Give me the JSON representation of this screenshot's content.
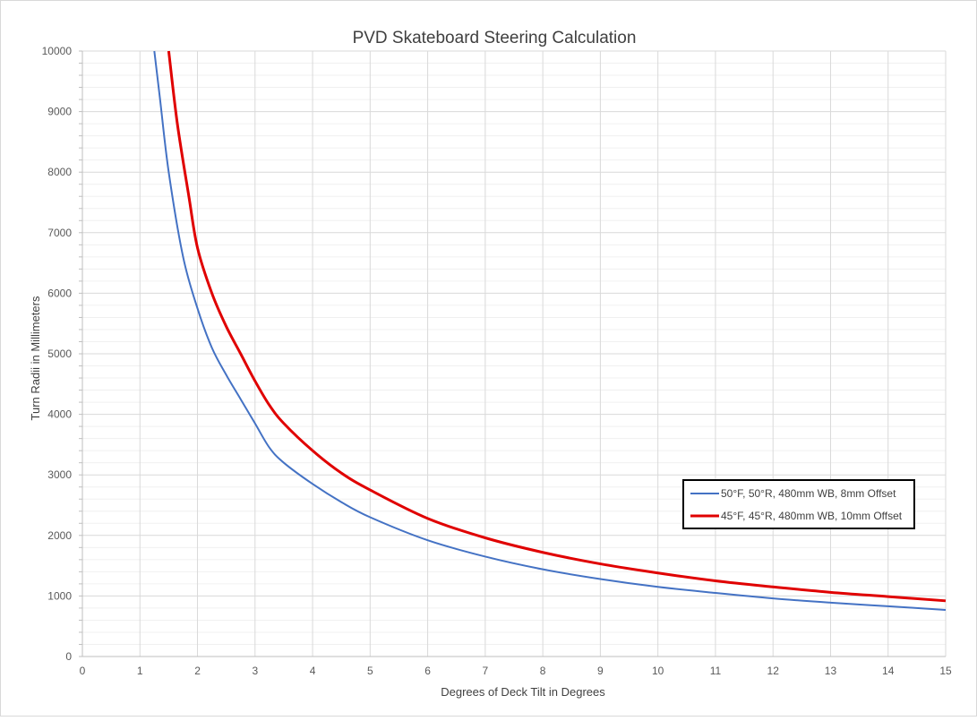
{
  "chart_data": {
    "type": "line",
    "title": "PVD Skateboard Steering Calculation",
    "xlabel": "Degrees of Deck Tilt in Degrees",
    "ylabel": "Turn Radii in Millimeters",
    "xlim": [
      0,
      15
    ],
    "ylim": [
      0,
      10000
    ],
    "xticks": [
      0,
      1,
      2,
      3,
      4,
      5,
      6,
      7,
      8,
      9,
      10,
      11,
      12,
      13,
      14,
      15
    ],
    "yticks": [
      0,
      1000,
      2000,
      3000,
      4000,
      5000,
      6000,
      7000,
      8000,
      9000,
      10000
    ],
    "y_minor_step": 200,
    "grid": true,
    "legend_position": "right",
    "series": [
      {
        "name": "50°F, 50°R, 480mm WB, 8mm Offset",
        "color": "#4472C4",
        "points": [
          [
            1.25,
            10000
          ],
          [
            1.35,
            9200
          ],
          [
            1.5,
            8000
          ],
          [
            1.75,
            6600
          ],
          [
            2,
            5750
          ],
          [
            2.25,
            5100
          ],
          [
            2.5,
            4650
          ],
          [
            2.75,
            4250
          ],
          [
            3,
            3850
          ],
          [
            3.25,
            3450
          ],
          [
            3.5,
            3200
          ],
          [
            4,
            2850
          ],
          [
            4.5,
            2550
          ],
          [
            5,
            2300
          ],
          [
            6,
            1920
          ],
          [
            7,
            1650
          ],
          [
            8,
            1440
          ],
          [
            9,
            1280
          ],
          [
            10,
            1150
          ],
          [
            11,
            1050
          ],
          [
            12,
            960
          ],
          [
            13,
            890
          ],
          [
            14,
            830
          ],
          [
            15,
            770
          ]
        ]
      },
      {
        "name": "45°F, 45°R, 480mm WB, 10mm Offset",
        "color": "#E00000",
        "points": [
          [
            1.5,
            10000
          ],
          [
            1.65,
            8800
          ],
          [
            1.85,
            7600
          ],
          [
            2,
            6750
          ],
          [
            2.25,
            6000
          ],
          [
            2.5,
            5450
          ],
          [
            2.75,
            5000
          ],
          [
            3,
            4550
          ],
          [
            3.25,
            4150
          ],
          [
            3.5,
            3850
          ],
          [
            4,
            3400
          ],
          [
            4.5,
            3030
          ],
          [
            5,
            2750
          ],
          [
            6,
            2280
          ],
          [
            7,
            1960
          ],
          [
            8,
            1720
          ],
          [
            9,
            1530
          ],
          [
            10,
            1380
          ],
          [
            11,
            1250
          ],
          [
            12,
            1150
          ],
          [
            13,
            1060
          ],
          [
            14,
            990
          ],
          [
            15,
            920
          ]
        ]
      }
    ]
  }
}
